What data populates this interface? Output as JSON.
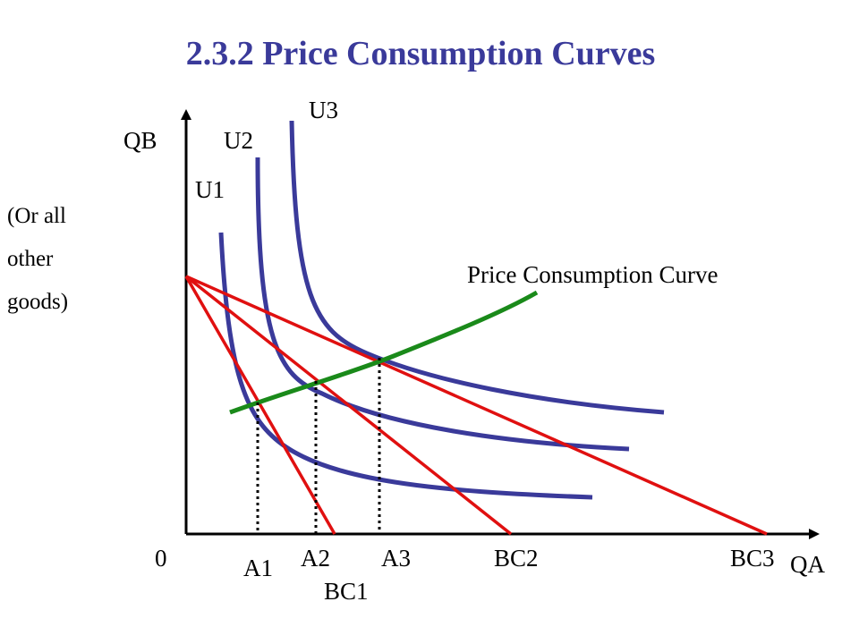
{
  "title": "2.3.2 Price Consumption Curves",
  "side_note": [
    "(Or all",
    "other",
    "goods)"
  ],
  "labels": {
    "y_axis": "QB",
    "x_axis": "QA",
    "origin": "0",
    "u1": "U1",
    "u2": "U2",
    "u3": "U3",
    "pcc": "Price Consumption Curve",
    "a1": "A1",
    "a2": "A2",
    "a3": "A3",
    "bc1": "BC1",
    "bc2": "BC2",
    "bc3": "BC3"
  },
  "colors": {
    "title": "#3a3a9a",
    "indifference_curves": "#3a3a9a",
    "budget_lines": "#e01010",
    "pcc": "#1a8a1a",
    "axes": "#000000"
  }
}
